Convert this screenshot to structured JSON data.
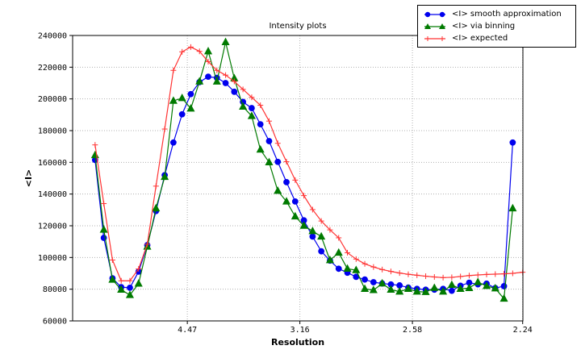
{
  "figure": {
    "title": "Intensity plots",
    "xlabel": "Resolution",
    "ylabel": "<I>"
  },
  "chart_data": {
    "type": "line",
    "title": "Intensity plots",
    "xlabel": "Resolution",
    "ylabel": "<I>",
    "grid": "dotted",
    "legend_position": "top-right-outside",
    "x_axis": {
      "note": "resolution axis, tick positions linear in 1/d^2",
      "range_1_over_d2": [
        -0.001,
        0.1994
      ],
      "tick_labels": [
        "4.47",
        "3.16",
        "2.58",
        "2.24"
      ],
      "tick_positions_1_over_d2": [
        0.05005,
        0.10014,
        0.15023,
        0.1993
      ]
    },
    "y_axis": {
      "range": [
        60000,
        240000
      ],
      "tick_labels": [
        "60000",
        "80000",
        "100000",
        "120000",
        "140000",
        "160000",
        "180000",
        "200000",
        "220000",
        "240000"
      ],
      "tick_values": [
        60000,
        80000,
        100000,
        120000,
        140000,
        160000,
        180000,
        200000,
        220000,
        240000
      ]
    },
    "colors": {
      "blue": "#0000ee",
      "green": "#007a00",
      "red": "#ff3333",
      "grid": "#b0b0b0",
      "frame": "#000000"
    },
    "series": [
      {
        "name": "<I> smooth approximation",
        "color": "#0000ee",
        "marker": "circle",
        "x": [
          0.009,
          0.01287,
          0.01674,
          0.02062,
          0.02449,
          0.02836,
          0.03223,
          0.0361,
          0.03998,
          0.04385,
          0.04772,
          0.05159,
          0.05546,
          0.05934,
          0.06321,
          0.06708,
          0.07095,
          0.07482,
          0.0787,
          0.08257,
          0.08644,
          0.09031,
          0.09418,
          0.09806,
          0.10193,
          0.1058,
          0.10967,
          0.11354,
          0.11742,
          0.12129,
          0.12516,
          0.12903,
          0.1329,
          0.13678,
          0.14065,
          0.14452,
          0.14839,
          0.15226,
          0.15614,
          0.16001,
          0.16388,
          0.16775,
          0.17162,
          0.1755,
          0.17937,
          0.18324,
          0.18711,
          0.19098,
          0.19486
        ],
        "y": [
          161500,
          112400,
          86900,
          81300,
          80900,
          91100,
          107800,
          129300,
          151900,
          172500,
          190300,
          203000,
          210600,
          214000,
          213300,
          210000,
          204500,
          198100,
          194200,
          184000,
          173400,
          160300,
          147500,
          135300,
          123400,
          113200,
          103900,
          98000,
          92900,
          90400,
          87800,
          86100,
          84400,
          83600,
          83000,
          82400,
          81000,
          80200,
          79700,
          79700,
          80200,
          79000,
          82200,
          84100,
          83100,
          83500,
          80700,
          81900,
          172500
        ]
      },
      {
        "name": "<I> via binning",
        "color": "#007a00",
        "marker": "triangle",
        "x": [
          0.009,
          0.01287,
          0.01674,
          0.02062,
          0.02449,
          0.02836,
          0.03223,
          0.0361,
          0.03998,
          0.04385,
          0.04772,
          0.05159,
          0.05546,
          0.05934,
          0.06321,
          0.06708,
          0.07095,
          0.07482,
          0.0787,
          0.08257,
          0.08644,
          0.09031,
          0.09418,
          0.09806,
          0.10193,
          0.1058,
          0.10967,
          0.11354,
          0.11742,
          0.12129,
          0.12516,
          0.12903,
          0.1329,
          0.13678,
          0.14065,
          0.14452,
          0.14839,
          0.15226,
          0.15614,
          0.16001,
          0.16388,
          0.16775,
          0.17162,
          0.1755,
          0.17937,
          0.18324,
          0.18711,
          0.19098,
          0.19486
        ],
        "y": [
          164500,
          117500,
          86000,
          79700,
          76300,
          83500,
          106800,
          131000,
          150800,
          198800,
          200500,
          193900,
          211000,
          230000,
          210900,
          235800,
          213000,
          195100,
          189200,
          168000,
          160000,
          142000,
          135300,
          125900,
          120000,
          116600,
          113200,
          98300,
          103000,
          92900,
          92000,
          80200,
          79400,
          83600,
          79700,
          78500,
          80200,
          78500,
          78200,
          80800,
          78500,
          82700,
          80200,
          80700,
          84400,
          82000,
          80500,
          74000,
          131000
        ]
      },
      {
        "name": "<I> expected",
        "color": "#ff3333",
        "marker": "plus",
        "x": [
          0.009,
          0.01287,
          0.01674,
          0.02062,
          0.02449,
          0.02836,
          0.03223,
          0.0361,
          0.03998,
          0.04385,
          0.04772,
          0.05159,
          0.05546,
          0.05934,
          0.06321,
          0.06708,
          0.07095,
          0.07482,
          0.0787,
          0.08257,
          0.08644,
          0.09031,
          0.09418,
          0.09806,
          0.10193,
          0.1058,
          0.10967,
          0.11354,
          0.11742,
          0.12129,
          0.12516,
          0.12903,
          0.1329,
          0.13678,
          0.14065,
          0.14452,
          0.14839,
          0.15226,
          0.15614,
          0.16001,
          0.16388,
          0.16775,
          0.17162,
          0.1755,
          0.17937,
          0.18324,
          0.18711,
          0.19098,
          0.19486,
          0.1993
        ],
        "y": [
          171000,
          134000,
          98400,
          85300,
          85300,
          92800,
          108400,
          145000,
          181000,
          218000,
          229700,
          232700,
          230000,
          223500,
          218000,
          215000,
          211000,
          206000,
          201000,
          196000,
          186000,
          172000,
          160400,
          148800,
          139000,
          130200,
          123000,
          117400,
          112400,
          103000,
          99000,
          96000,
          94000,
          92400,
          91200,
          90200,
          89400,
          88800,
          88200,
          87700,
          87300,
          87500,
          88000,
          88600,
          89000,
          89300,
          89500,
          89700,
          90000,
          90700
        ]
      }
    ]
  }
}
